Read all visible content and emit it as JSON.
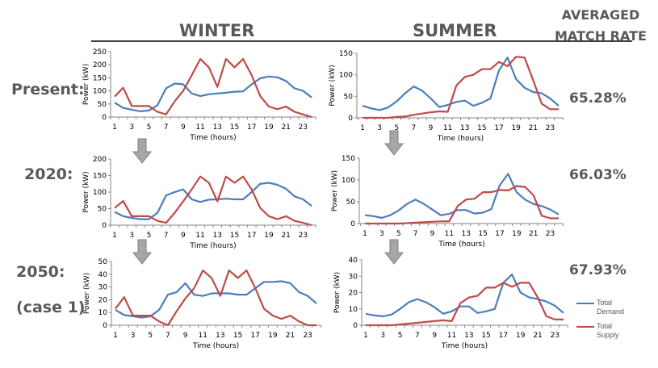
{
  "headers": {
    "winter": "WINTER",
    "summer": "SUMMER",
    "averaged_match_rate_line1": "AVERAGED",
    "averaged_match_rate_line2": "MATCH RATE"
  },
  "rows": [
    {
      "label": "Present:",
      "sublabel": "",
      "match_rate": "65.28%"
    },
    {
      "label": "2020:",
      "sublabel": "",
      "match_rate": "66.03%"
    },
    {
      "label": "2050:",
      "sublabel": "(case 1)",
      "match_rate": "67.93%"
    }
  ],
  "legend": {
    "demand": {
      "label_line1": "Total",
      "label_line2": "Demand",
      "color": "#4a7ebb"
    },
    "supply": {
      "label_line1": "Total",
      "label_line2": "Supply",
      "color": "#be4b48"
    }
  },
  "icons": {
    "down_arrow": "down-arrow-icon"
  },
  "chart_data": [
    {
      "type": "line",
      "id": "winter-present",
      "season": "WINTER",
      "scenario": "Present",
      "xlabel": "Time (hours)",
      "ylabel": "Power (kW)",
      "x": [
        1,
        2,
        3,
        4,
        5,
        6,
        7,
        8,
        9,
        10,
        11,
        12,
        13,
        14,
        15,
        16,
        17,
        18,
        19,
        20,
        21,
        22,
        23,
        24
      ],
      "xticks": [
        1,
        3,
        5,
        7,
        9,
        11,
        13,
        15,
        17,
        19,
        21,
        23
      ],
      "ylim": [
        0,
        250
      ],
      "yticks": [
        0,
        50,
        100,
        150,
        200,
        250
      ],
      "series": [
        {
          "name": "Total Demand",
          "values": [
            55,
            35,
            28,
            22,
            25,
            45,
            110,
            128,
            125,
            90,
            80,
            87,
            90,
            93,
            97,
            98,
            125,
            148,
            155,
            152,
            138,
            110,
            100,
            75
          ]
        },
        {
          "name": "Total Supply",
          "values": [
            78,
            112,
            42,
            42,
            42,
            20,
            10,
            60,
            100,
            160,
            222,
            190,
            115,
            222,
            190,
            222,
            160,
            80,
            40,
            30,
            40,
            20,
            10,
            0
          ]
        }
      ]
    },
    {
      "type": "line",
      "id": "summer-present",
      "season": "SUMMER",
      "scenario": "Present",
      "xlabel": "Time (hours)",
      "ylabel": "Power (kW)",
      "x": [
        1,
        2,
        3,
        4,
        5,
        6,
        7,
        8,
        9,
        10,
        11,
        12,
        13,
        14,
        15,
        16,
        17,
        18,
        19,
        20,
        21,
        22,
        23,
        24
      ],
      "xticks": [
        1,
        3,
        5,
        7,
        9,
        11,
        13,
        15,
        17,
        19,
        21,
        23
      ],
      "ylim": [
        0,
        150
      ],
      "yticks": [
        0,
        50,
        100,
        150
      ],
      "series": [
        {
          "name": "Total Demand",
          "values": [
            28,
            22,
            18,
            24,
            38,
            57,
            73,
            63,
            45,
            25,
            30,
            37,
            40,
            28,
            35,
            45,
            110,
            140,
            90,
            70,
            60,
            57,
            45,
            28
          ]
        },
        {
          "name": "Total Supply",
          "values": [
            0,
            0,
            0,
            0,
            2,
            3,
            7,
            10,
            13,
            15,
            14,
            75,
            95,
            100,
            113,
            113,
            130,
            120,
            142,
            140,
            88,
            33,
            20,
            20
          ]
        }
      ]
    },
    {
      "type": "line",
      "id": "winter-2020",
      "season": "WINTER",
      "scenario": "2020",
      "xlabel": "Time (hours)",
      "ylabel": "Power (kW)",
      "x": [
        1,
        2,
        3,
        4,
        5,
        6,
        7,
        8,
        9,
        10,
        11,
        12,
        13,
        14,
        15,
        16,
        17,
        18,
        19,
        20,
        21,
        22,
        23,
        24
      ],
      "xticks": [
        1,
        3,
        5,
        7,
        9,
        11,
        13,
        15,
        17,
        19,
        21,
        23
      ],
      "ylim": [
        0,
        200
      ],
      "yticks": [
        0,
        50,
        100,
        150,
        200
      ],
      "series": [
        {
          "name": "Total Demand",
          "values": [
            40,
            27,
            22,
            18,
            18,
            37,
            90,
            100,
            108,
            78,
            70,
            77,
            78,
            80,
            78,
            78,
            100,
            125,
            128,
            122,
            110,
            87,
            78,
            58
          ]
        },
        {
          "name": "Total Supply",
          "values": [
            52,
            73,
            27,
            27,
            27,
            13,
            7,
            37,
            72,
            108,
            147,
            128,
            72,
            147,
            128,
            147,
            108,
            52,
            27,
            18,
            27,
            13,
            7,
            0
          ]
        }
      ]
    },
    {
      "type": "line",
      "id": "summer-2020",
      "season": "SUMMER",
      "scenario": "2020",
      "xlabel": "Time (hours)",
      "ylabel": "Power (kW)",
      "x": [
        1,
        2,
        3,
        4,
        5,
        6,
        7,
        8,
        9,
        10,
        11,
        12,
        13,
        14,
        15,
        16,
        17,
        18,
        19,
        20,
        21,
        22,
        23,
        24
      ],
      "xticks": [
        1,
        3,
        5,
        7,
        9,
        11,
        13,
        15,
        17,
        19,
        21,
        23
      ],
      "ylim": [
        0,
        150
      ],
      "yticks": [
        0,
        50,
        100,
        150
      ],
      "series": [
        {
          "name": "Total Demand",
          "values": [
            19,
            17,
            13,
            19,
            30,
            45,
            55,
            45,
            32,
            19,
            22,
            31,
            31,
            23,
            25,
            33,
            88,
            114,
            72,
            55,
            45,
            40,
            32,
            21
          ]
        },
        {
          "name": "Total Supply",
          "values": [
            0,
            0,
            0,
            0,
            0,
            1,
            2,
            3,
            4,
            5,
            5,
            40,
            55,
            57,
            72,
            72,
            77,
            76,
            86,
            84,
            65,
            18,
            12,
            12
          ]
        }
      ]
    },
    {
      "type": "line",
      "id": "winter-2050",
      "season": "WINTER",
      "scenario": "2050 (case 1)",
      "xlabel": "Time (hours)",
      "ylabel": "Power (kW)",
      "x": [
        1,
        2,
        3,
        4,
        5,
        6,
        7,
        8,
        9,
        10,
        11,
        12,
        13,
        14,
        15,
        16,
        17,
        18,
        19,
        20,
        21,
        22,
        23,
        24
      ],
      "xticks": [
        1,
        3,
        5,
        7,
        9,
        11,
        13,
        15,
        17,
        19,
        21,
        23
      ],
      "ylim": [
        0,
        50
      ],
      "yticks": [
        0,
        10,
        20,
        30,
        40,
        50
      ],
      "series": [
        {
          "name": "Total Demand",
          "values": [
            12,
            8,
            7,
            6,
            7,
            12,
            24,
            26,
            33,
            24,
            23,
            25,
            25,
            25,
            24,
            24,
            29,
            34,
            34,
            34.5,
            33,
            26,
            23,
            17
          ]
        },
        {
          "name": "Total Supply",
          "values": [
            13,
            22,
            7.5,
            7.5,
            7.5,
            3,
            0,
            11,
            21,
            29,
            43,
            37,
            23,
            43,
            37,
            43,
            29,
            13,
            7.5,
            5,
            7.5,
            3,
            0,
            0
          ]
        }
      ]
    },
    {
      "type": "line",
      "id": "summer-2050",
      "season": "SUMMER",
      "scenario": "2050 (case 1)",
      "xlabel": "Time (hours)",
      "ylabel": "Power (kW)",
      "x": [
        1,
        2,
        3,
        4,
        5,
        6,
        7,
        8,
        9,
        10,
        11,
        12,
        13,
        14,
        15,
        16,
        17,
        18,
        19,
        20,
        21,
        22,
        23,
        24
      ],
      "xticks": [
        1,
        3,
        5,
        7,
        9,
        11,
        13,
        15,
        17,
        19,
        21,
        23
      ],
      "ylim": [
        0,
        40
      ],
      "yticks": [
        0,
        10,
        20,
        30,
        40
      ],
      "series": [
        {
          "name": "Total Demand",
          "values": [
            7,
            6,
            5.5,
            6.5,
            10,
            14,
            16,
            14,
            11,
            7,
            8.5,
            11.5,
            11.5,
            7.5,
            8.5,
            10,
            26,
            31,
            20,
            17,
            16,
            14.5,
            12,
            7.5
          ]
        },
        {
          "name": "Total Supply",
          "values": [
            0,
            0,
            0,
            0,
            0.5,
            1,
            1.5,
            2,
            2.5,
            3,
            2.5,
            13.5,
            17,
            18,
            23,
            23,
            26,
            23.5,
            26,
            26,
            17,
            5.5,
            3.5,
            3.5
          ]
        }
      ]
    }
  ]
}
